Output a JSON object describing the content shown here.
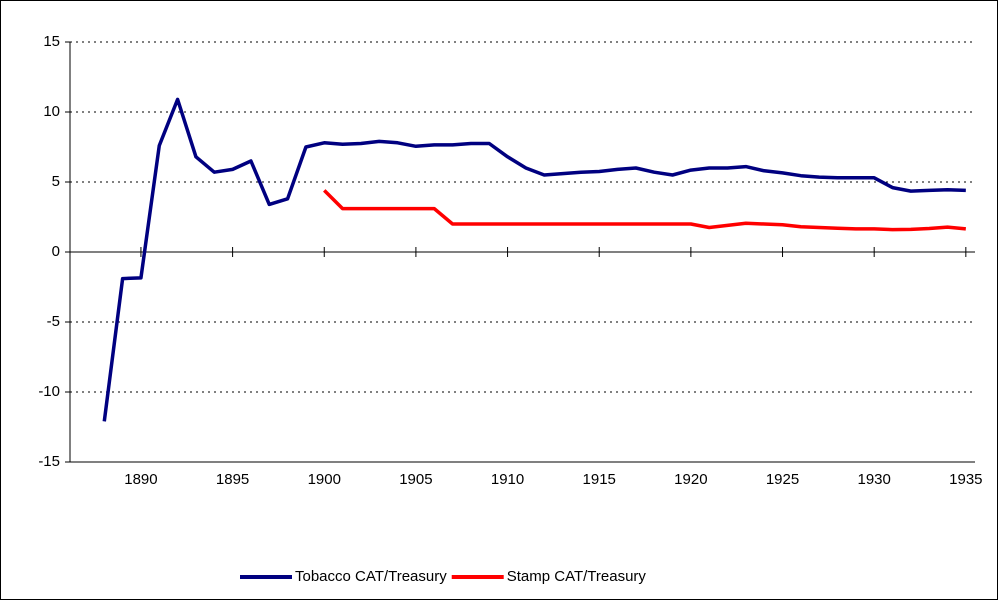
{
  "chart_data": {
    "type": "line",
    "x": [
      1888,
      1889,
      1890,
      1891,
      1892,
      1893,
      1894,
      1895,
      1896,
      1897,
      1898,
      1899,
      1900,
      1901,
      1902,
      1903,
      1904,
      1905,
      1906,
      1907,
      1908,
      1909,
      1910,
      1911,
      1912,
      1913,
      1914,
      1915,
      1916,
      1917,
      1918,
      1919,
      1920,
      1921,
      1922,
      1923,
      1924,
      1925,
      1926,
      1927,
      1928,
      1929,
      1930,
      1931,
      1932,
      1933,
      1934,
      1935
    ],
    "series": [
      {
        "name": "Tobacco CAT/Treasury",
        "color": "#000080",
        "values": [
          -12.1,
          -1.9,
          -1.85,
          7.6,
          10.9,
          6.8,
          5.7,
          5.9,
          6.5,
          3.4,
          3.8,
          7.5,
          7.8,
          7.7,
          7.75,
          7.9,
          7.8,
          7.55,
          7.65,
          7.65,
          7.75,
          7.75,
          6.8,
          6.0,
          5.5,
          5.6,
          5.7,
          5.75,
          5.9,
          6.0,
          5.7,
          5.5,
          5.85,
          6.0,
          6.0,
          6.1,
          5.8,
          5.65,
          5.45,
          5.35,
          5.3,
          5.3,
          5.3,
          4.6,
          4.35,
          4.4,
          4.45,
          4.4
        ]
      },
      {
        "name": "Stamp CAT/Treasury",
        "color": "#ff0000",
        "values": [
          null,
          null,
          null,
          null,
          null,
          null,
          null,
          null,
          null,
          null,
          null,
          null,
          4.4,
          3.1,
          3.1,
          3.1,
          3.1,
          3.1,
          3.1,
          2.0,
          2.0,
          2.0,
          2.0,
          2.0,
          2.0,
          2.0,
          2.0,
          2.0,
          2.0,
          2.0,
          2.0,
          2.0,
          2.0,
          1.75,
          1.9,
          2.05,
          2.0,
          1.95,
          1.8,
          1.75,
          1.7,
          1.65,
          1.65,
          1.6,
          1.62,
          1.68,
          1.78,
          1.65
        ]
      }
    ],
    "xlim": [
      1886.13,
      1935.5
    ],
    "xticks": [
      1890,
      1895,
      1900,
      1905,
      1910,
      1915,
      1920,
      1925,
      1930,
      1935
    ],
    "ylim": [
      -15,
      15
    ],
    "yticks": [
      -15,
      -10,
      -5,
      0,
      5,
      10,
      15
    ],
    "grid": true,
    "legend": "bottom"
  }
}
